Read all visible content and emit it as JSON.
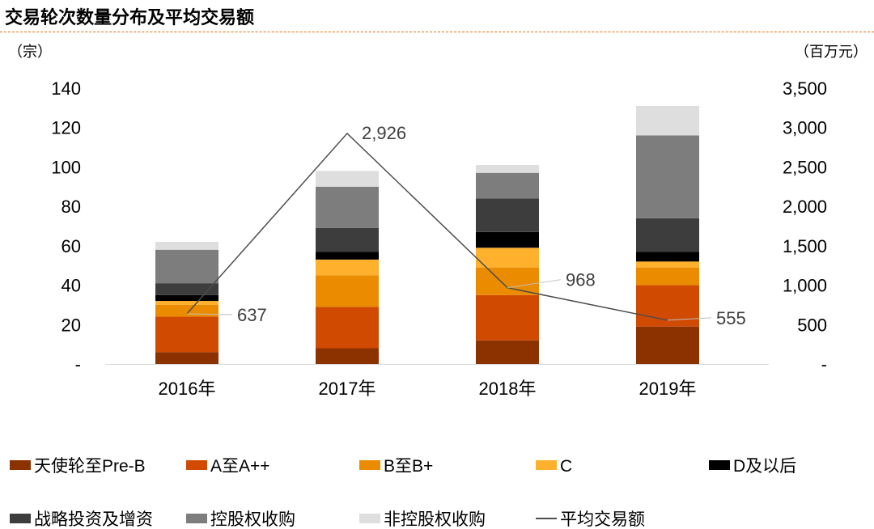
{
  "title": "交易轮次数量分布及平均交易额",
  "chart_data": {
    "type": "bar",
    "stacked": true,
    "title": "交易轮次数量分布及平均交易额",
    "categories": [
      "2016年",
      "2017年",
      "2018年",
      "2019年"
    ],
    "y_left": {
      "unit": "（宗）",
      "ylim": [
        0,
        140
      ],
      "ticks": [
        0,
        20,
        40,
        60,
        80,
        100,
        120,
        140
      ],
      "tick_labels": [
        "-",
        "20",
        "40",
        "60",
        "80",
        "100",
        "120",
        "140"
      ]
    },
    "y_right": {
      "unit": "（百万元）",
      "ylim": [
        0,
        3500
      ],
      "ticks": [
        0,
        500,
        1000,
        1500,
        2000,
        2500,
        3000,
        3500
      ],
      "tick_labels": [
        "-",
        "500",
        "1,000",
        "1,500",
        "2,000",
        "2,500",
        "3,000",
        "3,500"
      ]
    },
    "series": [
      {
        "name": "天使轮至Pre-B",
        "color": "#8b3200",
        "values": [
          6,
          8,
          12,
          19
        ]
      },
      {
        "name": "A至A++",
        "color": "#d04a02",
        "values": [
          18,
          21,
          23,
          21
        ]
      },
      {
        "name": "B至B+",
        "color": "#eb8c00",
        "values": [
          6,
          16,
          14,
          9
        ]
      },
      {
        "name": "C",
        "color": "#ffb02d",
        "values": [
          2,
          8,
          10,
          3
        ]
      },
      {
        "name": "D及以后",
        "color": "#000000",
        "values": [
          3,
          4,
          8,
          5
        ]
      },
      {
        "name": "战略投资及增资",
        "color": "#3d3d3d",
        "values": [
          6,
          12,
          17,
          17
        ]
      },
      {
        "name": "控股权收购",
        "color": "#7d7d7d",
        "values": [
          17,
          21,
          13,
          42
        ]
      },
      {
        "name": "非控股权收购",
        "color": "#dedede",
        "values": [
          4,
          8,
          4,
          15
        ]
      }
    ],
    "line": {
      "name": "平均交易额",
      "color": "#4d4d4d",
      "axis": "right",
      "values": [
        637,
        2926,
        968,
        555
      ],
      "labels": [
        "637",
        "2,926",
        "968",
        "555"
      ]
    },
    "legend_position": "bottom",
    "grid": false
  }
}
